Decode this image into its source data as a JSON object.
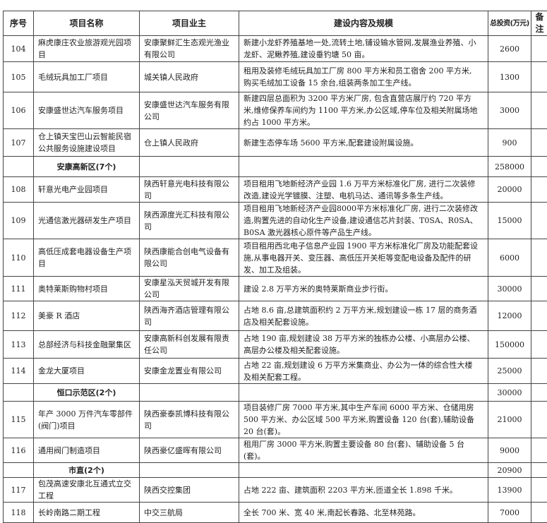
{
  "headers": {
    "no": "序号",
    "name": "项目名称",
    "owner": "项目业主",
    "content": "建设内容及规模",
    "investment": "总投资(万元)",
    "remark": "备注"
  },
  "rows": [
    {
      "no": "104",
      "name": "麻虎康庄农业旅游观光园项目",
      "owner": "安康聚鲜汇生态观光渔业有限公司",
      "content": "新建小龙虾养殖基地一处,流转土地,铺设输水管网,发展渔业养殖、小龙虾、泥鳅养殖,建设垂钓塘 50 亩。",
      "investment": "2600"
    },
    {
      "no": "105",
      "name": "毛绒玩具加工厂项目",
      "owner": "城关镇人民政府",
      "content": "租用及装修毛绒玩具加工厂房 800 平方米和员工宿舍 200 平方米,购买毛绒加工设备 15 余台,组装两条加工生产线。",
      "investment": "1300"
    },
    {
      "no": "106",
      "name": "安康盛世达汽车服务项目",
      "owner": "安康盛世达汽车服务有限公司",
      "content": "新建四层总面积为 3200 平方米厂房, 包含直营店展厅约 720 平方米,维修保养车间约为 1100 平方米,办公区域,停车位及相关附属场地约占 1000 平方米。",
      "investment": "3000"
    },
    {
      "no": "107",
      "name": "仓上镇天宝巴山云智能民宿公共服务设施建设项目",
      "owner": "仓上镇人民政府",
      "content": "新建生态停车场 5600 平方米,配套建设附属设施。",
      "investment": "900"
    },
    {
      "group": "安康高新区(7个)",
      "investment": "258000"
    },
    {
      "no": "108",
      "name": "轩意光电产业园项目",
      "owner": "陕西轩意光电科技有限公司",
      "content": "项目租用飞地新经济产业园 1.6 万平方米标准化厂房, 进行二次装修改造,建设光学镀膜、注塑、电机马达、通讯等多条生产线。",
      "investment": "20000"
    },
    {
      "no": "109",
      "name": "光通信激光器研发生产项目",
      "owner": "陕西源度光汇科技有限公司",
      "content": "项目租用飞地新经济产业园8000平方米标准化厂房, 进行二次装修改造,购置先进的自动化生产设备,建设通信芯片封装、T0SA、R0SA、B0SA 激光器核心原件等产品生产线。",
      "investment": "15000"
    },
    {
      "no": "110",
      "name": "高低压成套电器设备生产项目",
      "owner": "陕西康能合创电气设备有限公司",
      "content": "项目租用西北电子信息产业园 1900 平方米标准化厂房及功能配套设施,从事电器开关、变压器、高低压开关柜等变配电设备及配件的研发、加工及组装。",
      "investment": "6000"
    },
    {
      "no": "111",
      "name": "奥特莱斯购物村项目",
      "owner": "安康星泓天贸城开发有限公司",
      "content": "建设 2.8 万平方米的奥特莱斯商业步行街。",
      "investment": "30000"
    },
    {
      "no": "112",
      "name": "美豪 R 酒店",
      "owner": "陕西海齐酒店管理有限公司",
      "content": "占地 8.6 亩,总建筑面积约 2 万平方米,规划建设一栋 17 层的商务酒店及相关配套设施。",
      "investment": "12000"
    },
    {
      "no": "113",
      "name": "总部经济与科技金融聚集区",
      "owner": "安康高新科创发展有限责任公司",
      "content": "占地 190 亩,规划建设 38 万平方米的独栋办公楼、小高层办公楼、高层办公楼及相关配套设施。",
      "investment": "150000"
    },
    {
      "no": "114",
      "name": "金龙大厦项目",
      "owner": "安康金龙置业有限公司",
      "content": "占地 22 亩,规划建设 6 万平方米集商业、办公为一体的综合性大楼及相关配套工程。",
      "investment": "25000"
    },
    {
      "group": "恒口示范区(2个)",
      "investment": "30000"
    },
    {
      "no": "115",
      "name": "年产 3000 万件汽车零部件(阀门)项目",
      "owner": "陕西豪泰凯博科技有限公司",
      "content": "项目装修厂房 7000 平方米,其中生产车间 6000 平方米、仓储用房 500 平方米、办公区域 500 平方米,购置设备 120 台(套),辅助设备 20 台(套)。",
      "investment": "21000"
    },
    {
      "no": "116",
      "name": "通用阀门制造项目",
      "owner": "陕西豪亿盛晖有限公司",
      "content": "租用厂房 3000 平方米,购置主要设备 80 台(套)、辅助设备 5 台(套)。",
      "investment": "9000"
    },
    {
      "group": "市直(2个)",
      "investment": "20900"
    },
    {
      "no": "117",
      "name": "包茂高速安康北互通式立交工程",
      "owner": "陕西交控集团",
      "content": "占地 222 亩、建筑面积 2203 平方米,匝道全长 1.898 千米。",
      "investment": "13900"
    },
    {
      "no": "118",
      "name": "长岭南路二期工程",
      "owner": "中交三航局",
      "content": "全长 700 米、宽 40 米,南起长春路、北至林苑路。",
      "investment": "7000"
    }
  ]
}
